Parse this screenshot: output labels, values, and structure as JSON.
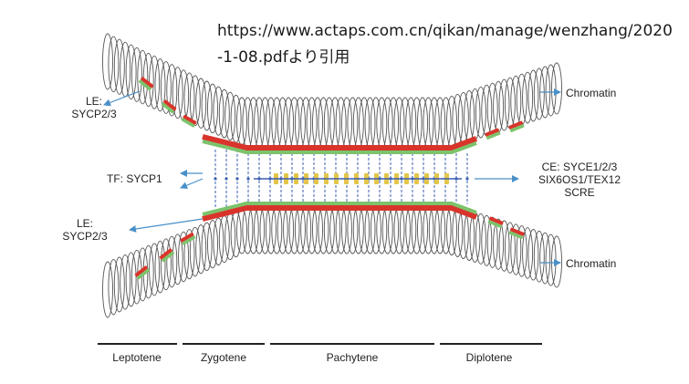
{
  "source_text": "https://www.actaps.com.cn/qikan/manage/wenzhang/2020-1-08.pdfより引用",
  "labels": {
    "le_top_line1": "LE:",
    "le_top_line2": "SYCP2/3",
    "tf": "TF: SYCP1",
    "le_bottom_line1": "LE:",
    "le_bottom_line2": "SYCP2/3",
    "chromatin_top": "Chromatin",
    "chromatin_bottom": "Chromatin",
    "ce_line1": "CE: SYCE1/2/3",
    "ce_line2": "SIX6OS1/TEX12",
    "ce_line3": "SCRE"
  },
  "stages": [
    "Leptotene",
    "Zygotene",
    "Pachytene",
    "Diplotene"
  ],
  "colors": {
    "red_element": "#d9342b",
    "green_element": "#7cc36b",
    "blue_fiber": "#3b5fb0",
    "yellow_element": "#e3c64a",
    "arrow": "#4a90c8",
    "loop": "#555555"
  }
}
